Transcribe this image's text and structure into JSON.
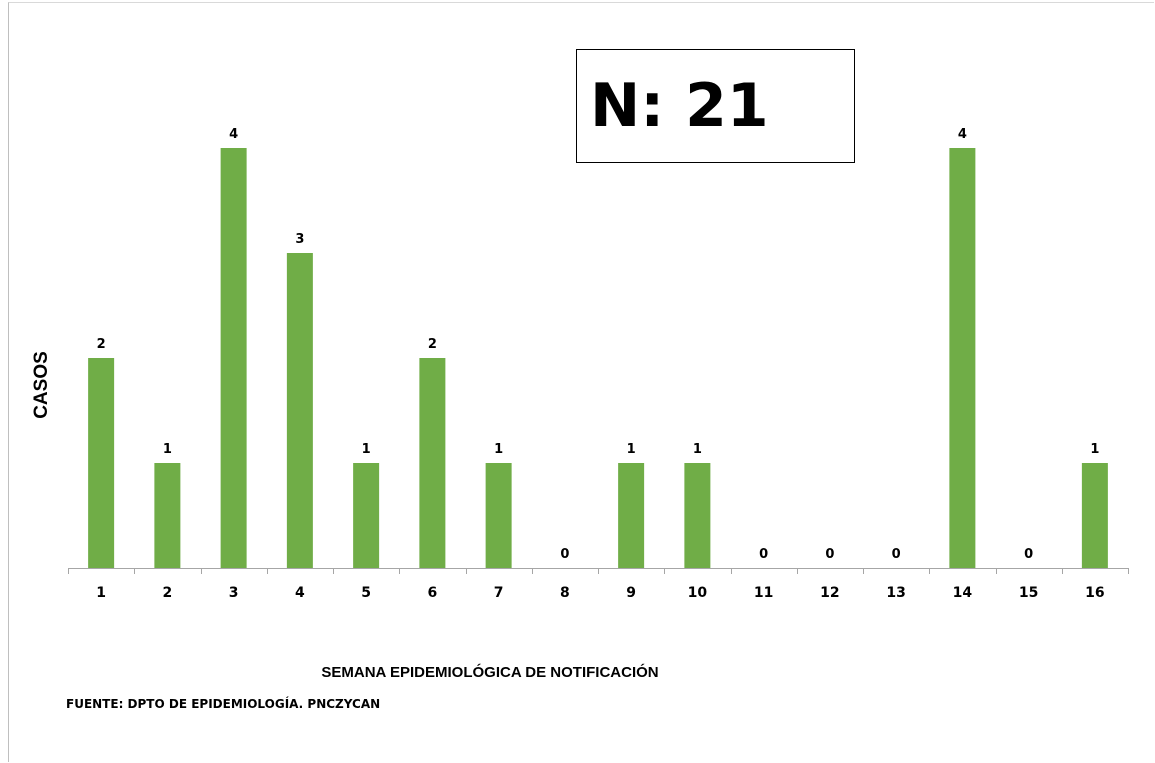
{
  "chart_data": {
    "type": "bar",
    "categories": [
      "1",
      "2",
      "3",
      "4",
      "5",
      "6",
      "7",
      "8",
      "9",
      "10",
      "11",
      "12",
      "13",
      "14",
      "15",
      "16"
    ],
    "values": [
      2,
      1,
      4,
      3,
      1,
      2,
      1,
      0,
      1,
      1,
      0,
      0,
      0,
      4,
      0,
      1
    ],
    "xlabel": "SEMANA EPIDEMIOLÓGICA  DE NOTIFICACIÓN",
    "ylabel": "CASOS",
    "ylim": [
      0,
      4
    ],
    "grid": false,
    "data_labels": true,
    "bar_color": "#70ad47"
  },
  "annotations": {
    "total": "N: 21",
    "source": "FUENTE: DPTO DE EPIDEMIOLOGÍA. PNCZYCAN"
  }
}
